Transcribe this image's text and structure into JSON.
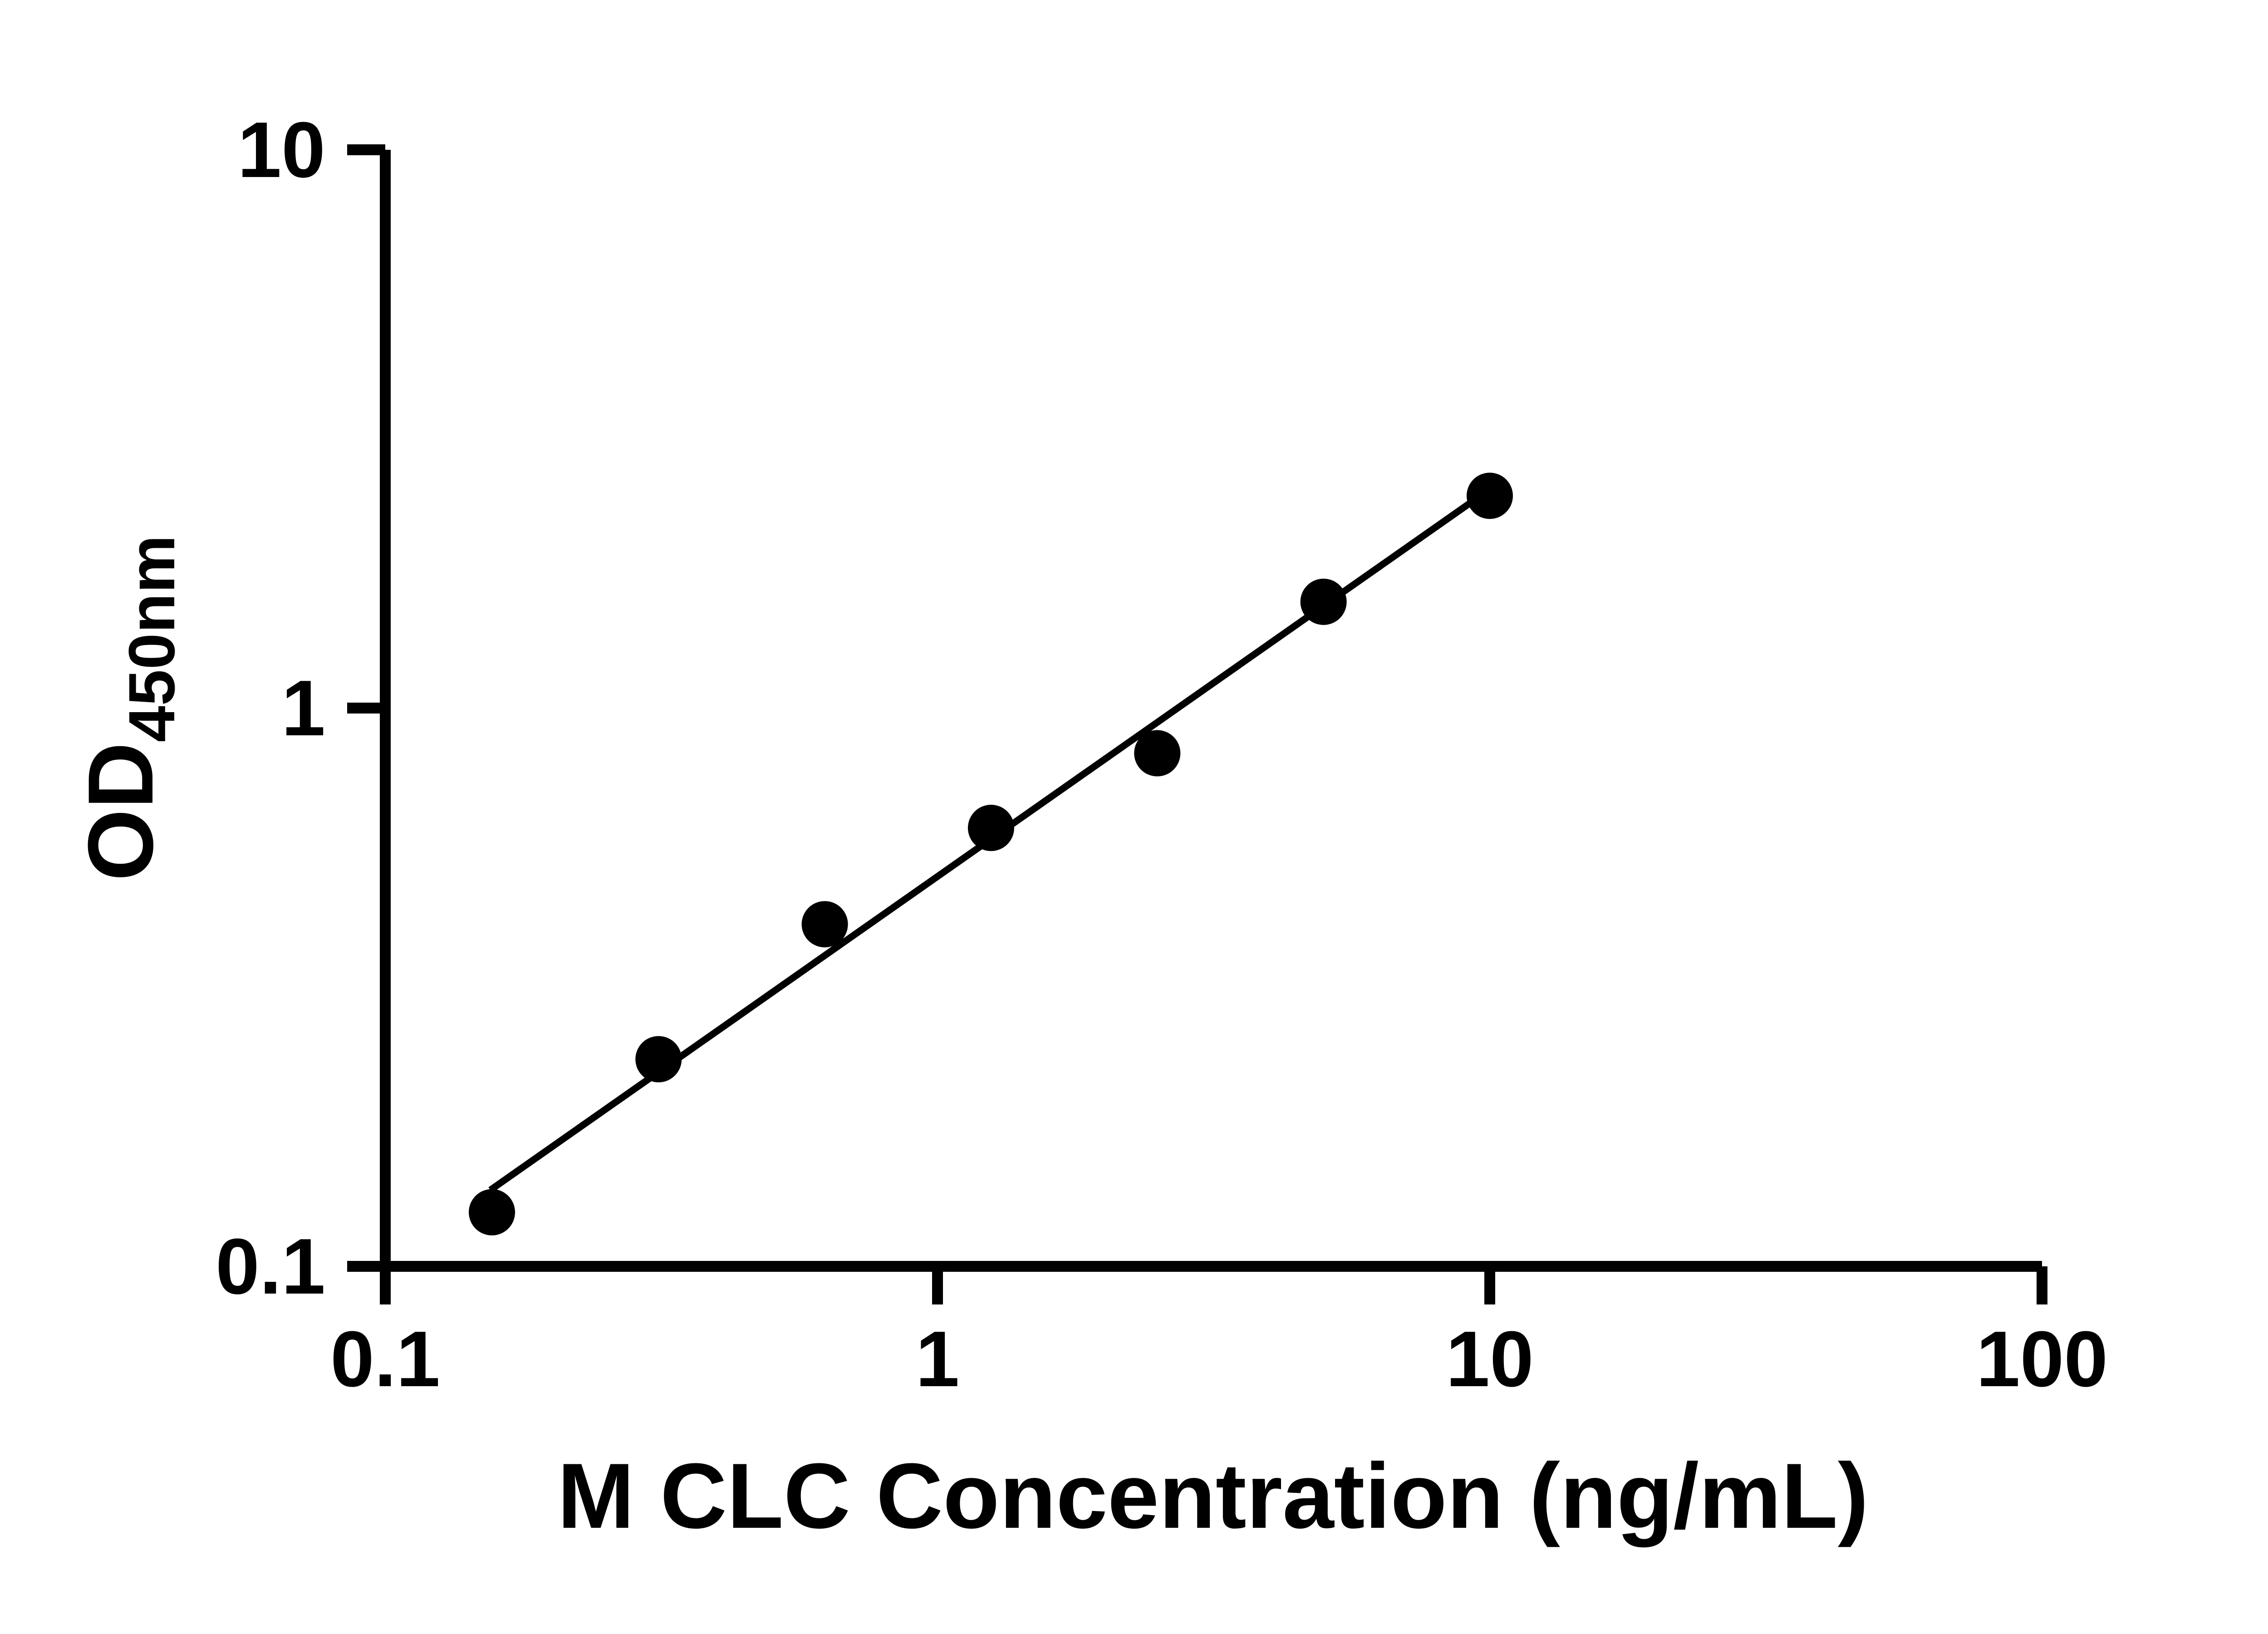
{
  "chart_data": {
    "type": "scatter",
    "title": "",
    "xlabel": "M CLC Concentration (ng/mL)",
    "ylabel_main": "OD",
    "ylabel_sub": "450nm",
    "x_scale": "log",
    "y_scale": "log",
    "xlim": [
      0.1,
      100
    ],
    "ylim": [
      0.1,
      10
    ],
    "x_ticks": [
      0.1,
      1,
      10,
      100
    ],
    "x_tick_labels": [
      "0.1",
      "1",
      "10",
      "100"
    ],
    "y_ticks": [
      0.1,
      1,
      10
    ],
    "y_tick_labels": [
      "0.1",
      "1",
      "10"
    ],
    "grid": false,
    "legend": "none",
    "points": [
      {
        "x": 0.156,
        "y": 0.125
      },
      {
        "x": 0.3125,
        "y": 0.235
      },
      {
        "x": 0.625,
        "y": 0.41
      },
      {
        "x": 1.25,
        "y": 0.61
      },
      {
        "x": 2.5,
        "y": 0.83
      },
      {
        "x": 5,
        "y": 1.55
      },
      {
        "x": 10,
        "y": 2.4
      }
    ],
    "trend_line": {
      "x1": 0.155,
      "y1": 0.137,
      "x2": 10.2,
      "y2": 2.5
    },
    "marker_color": "#000000",
    "line_color": "#000000",
    "axis_color": "#000000",
    "background_color": "#ffffff"
  }
}
